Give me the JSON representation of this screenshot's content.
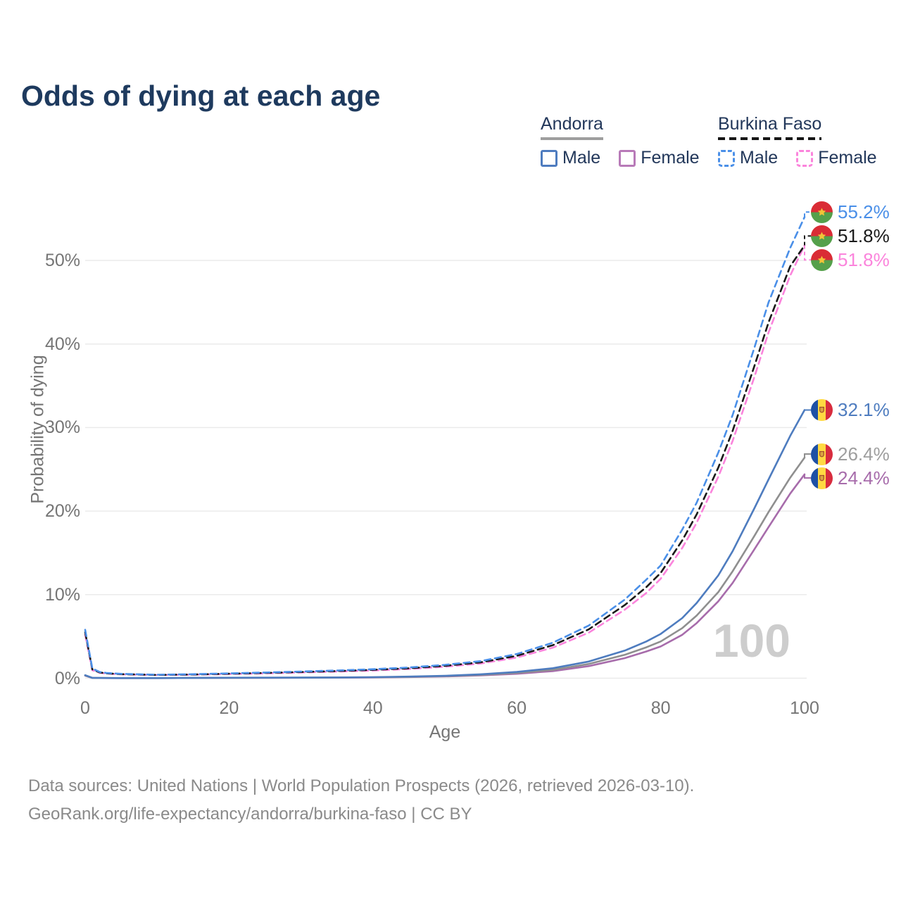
{
  "title": "Odds of dying at each age",
  "legend": {
    "groups": [
      {
        "country": "Andorra",
        "line_style": "solid",
        "underline_color": "#9e9e9e",
        "items": [
          {
            "label": "Male",
            "color": "#4e7cbf"
          },
          {
            "label": "Female",
            "color": "#b87ab8"
          }
        ]
      },
      {
        "country": "Burkina Faso",
        "line_style": "dashed",
        "underline_color": "#151515",
        "items": [
          {
            "label": "Male",
            "color": "#4a8fe8"
          },
          {
            "label": "Female",
            "color": "#fb84dc"
          }
        ]
      }
    ]
  },
  "y_axis": {
    "label": "Probability of dying",
    "ticks": [
      {
        "label": "0%",
        "value": 0
      },
      {
        "label": "10%",
        "value": 10
      },
      {
        "label": "20%",
        "value": 20
      },
      {
        "label": "30%",
        "value": 30
      },
      {
        "label": "40%",
        "value": 40
      },
      {
        "label": "50%",
        "value": 50
      }
    ]
  },
  "x_axis": {
    "label": "Age",
    "ticks": [
      {
        "label": "0",
        "value": 0
      },
      {
        "label": "20",
        "value": 20
      },
      {
        "label": "40",
        "value": 40
      },
      {
        "label": "60",
        "value": 60
      },
      {
        "label": "80",
        "value": 80
      },
      {
        "label": "100",
        "value": 100
      }
    ]
  },
  "hover_age_watermark": "100",
  "footer": {
    "line1": "Data sources: United Nations | World Population Prospects (2026, retrieved 2026-03-10).",
    "line2": "GeoRank.org/life-expectancy/andorra/burkina-faso | CC BY"
  },
  "chart_data": {
    "type": "line",
    "title": "Odds of dying at each age",
    "xlabel": "Age",
    "ylabel": "Probability of dying",
    "x_range": [
      0,
      100
    ],
    "y_range_percent": [
      0,
      56
    ],
    "grid": "horizontal",
    "legend_position": "top-right",
    "ages": [
      0,
      1,
      2,
      3,
      5,
      10,
      15,
      20,
      25,
      30,
      35,
      40,
      45,
      50,
      55,
      60,
      65,
      70,
      75,
      78,
      80,
      83,
      85,
      88,
      90,
      93,
      95,
      98,
      100
    ],
    "series": [
      {
        "id": "bf-male",
        "country": "Burkina Faso",
        "sex": "Male",
        "color": "#4a8fe8",
        "dash": true,
        "flag": "burkina-faso",
        "end_label": "55.2%",
        "values": [
          5.8,
          1.15,
          0.75,
          0.62,
          0.52,
          0.42,
          0.48,
          0.58,
          0.68,
          0.8,
          0.93,
          1.08,
          1.28,
          1.6,
          2.05,
          2.9,
          4.25,
          6.3,
          9.4,
          11.8,
          13.5,
          17.8,
          21.0,
          27.0,
          31.5,
          39.5,
          45.0,
          51.5,
          55.2
        ]
      },
      {
        "id": "bf-both",
        "country": "Burkina Faso",
        "sex": "Both sexes",
        "color": "#1a1a1a",
        "dash": true,
        "flag": "burkina-faso",
        "end_label": "51.8%",
        "values": [
          5.5,
          1.05,
          0.7,
          0.58,
          0.49,
          0.4,
          0.45,
          0.54,
          0.63,
          0.74,
          0.86,
          1.0,
          1.19,
          1.48,
          1.9,
          2.68,
          3.95,
          5.85,
          8.75,
          10.9,
          12.6,
          16.5,
          19.6,
          25.2,
          29.6,
          37.3,
          42.6,
          49.3,
          51.8
        ]
      },
      {
        "id": "bf-female",
        "country": "Burkina Faso",
        "sex": "Female",
        "color": "#fb84dc",
        "dash": true,
        "flag": "burkina-faso",
        "end_label": "51.8%",
        "values": [
          5.2,
          0.95,
          0.66,
          0.55,
          0.46,
          0.38,
          0.42,
          0.5,
          0.58,
          0.68,
          0.79,
          0.92,
          1.1,
          1.37,
          1.76,
          2.48,
          3.66,
          5.45,
          8.2,
          10.2,
          11.9,
          15.6,
          18.6,
          24.1,
          28.4,
          36.0,
          41.4,
          48.2,
          51.8
        ]
      },
      {
        "id": "ad-male",
        "country": "Andorra",
        "sex": "Male",
        "color": "#4e7cbf",
        "dash": false,
        "flag": "andorra",
        "end_label": "32.1%",
        "values": [
          0.36,
          0.04,
          0.03,
          0.025,
          0.02,
          0.02,
          0.035,
          0.055,
          0.065,
          0.075,
          0.095,
          0.13,
          0.19,
          0.29,
          0.47,
          0.75,
          1.2,
          2.0,
          3.3,
          4.4,
          5.3,
          7.2,
          9.0,
          12.3,
          15.2,
          20.3,
          23.8,
          29.0,
          32.1
        ]
      },
      {
        "id": "ad-both",
        "country": "Andorra",
        "sex": "Both sexes",
        "color": "#8f8f8f",
        "label_color": "#9e9e9e",
        "dash": false,
        "flag": "andorra",
        "end_label": "26.4%",
        "values": [
          0.33,
          0.035,
          0.027,
          0.022,
          0.018,
          0.018,
          0.03,
          0.045,
          0.055,
          0.065,
          0.08,
          0.11,
          0.16,
          0.25,
          0.4,
          0.63,
          1.0,
          1.7,
          2.8,
          3.7,
          4.4,
          6.0,
          7.5,
          10.3,
          12.8,
          17.0,
          19.9,
          24.0,
          26.4
        ]
      },
      {
        "id": "ad-female",
        "country": "Andorra",
        "sex": "Female",
        "color": "#a76cab",
        "dash": false,
        "flag": "andorra",
        "end_label": "24.4%",
        "values": [
          0.3,
          0.03,
          0.024,
          0.02,
          0.016,
          0.016,
          0.025,
          0.04,
          0.045,
          0.055,
          0.07,
          0.095,
          0.14,
          0.21,
          0.34,
          0.53,
          0.85,
          1.45,
          2.4,
          3.2,
          3.8,
          5.2,
          6.6,
          9.2,
          11.4,
          15.4,
          18.1,
          22.1,
          24.4
        ]
      }
    ]
  }
}
